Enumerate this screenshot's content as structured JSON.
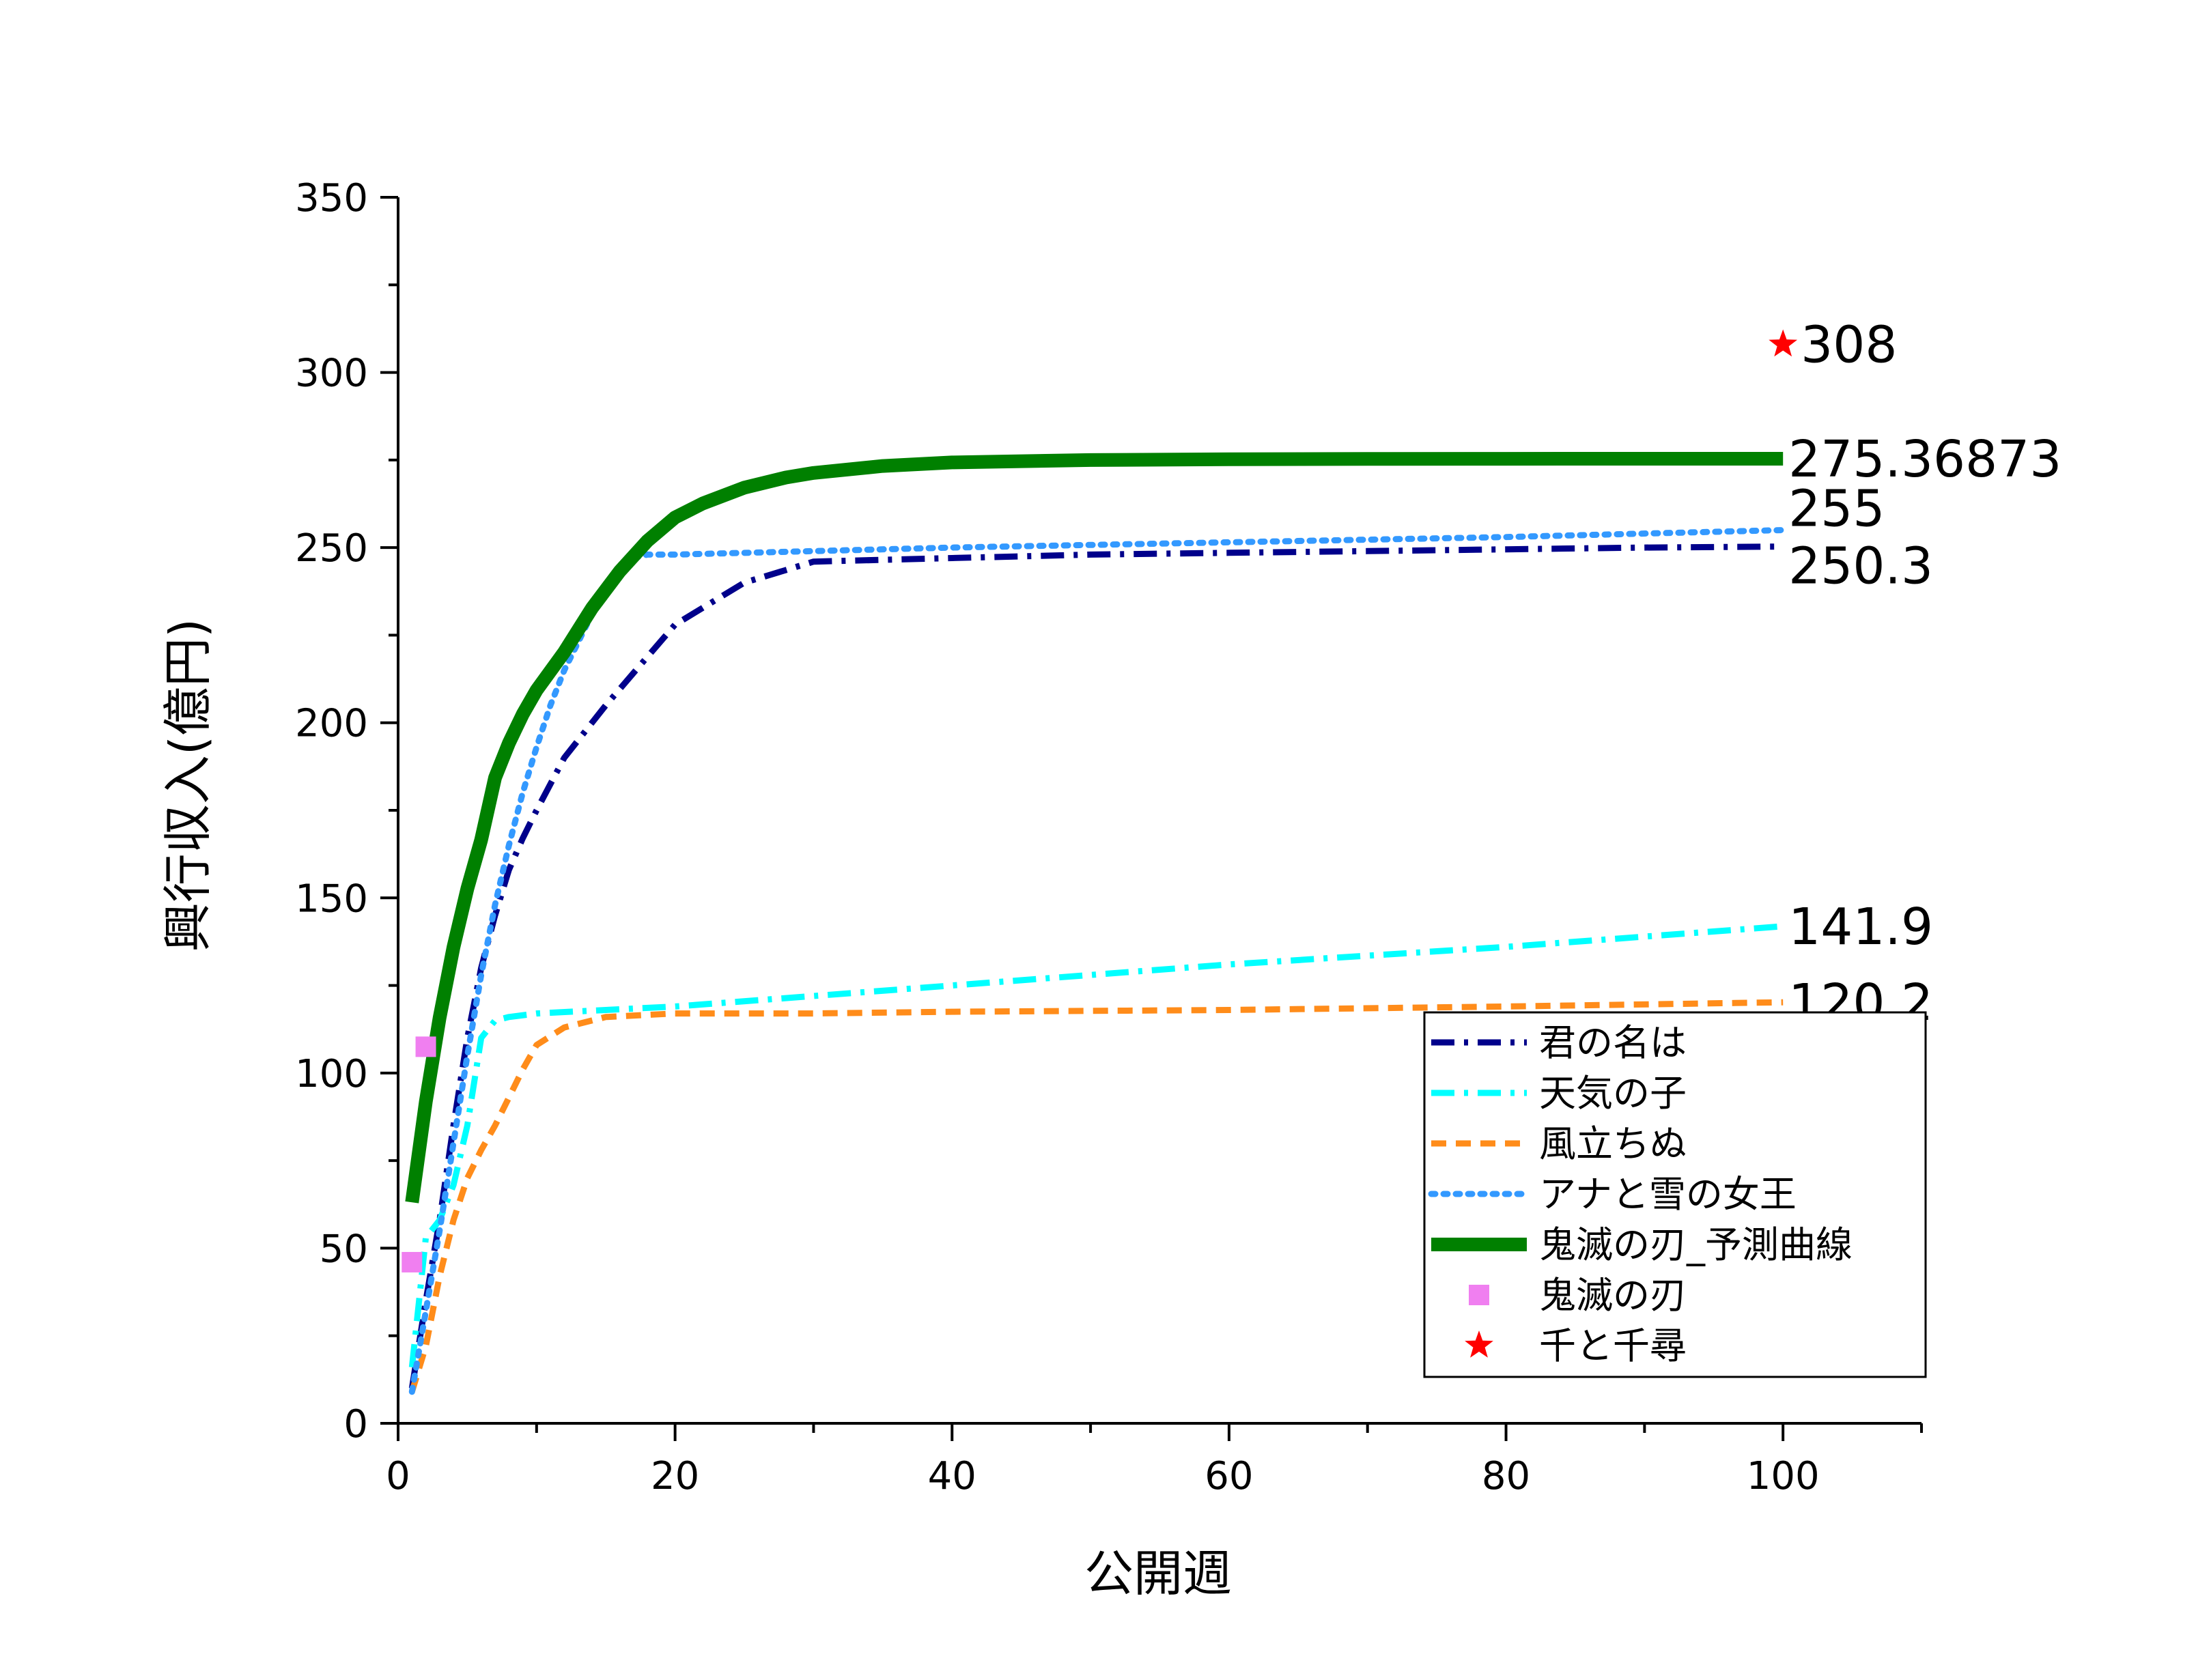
{
  "chart_data": {
    "type": "line",
    "title": "",
    "xlabel": "公開週",
    "ylabel": "興行収入(億円)",
    "xlim": [
      0,
      110
    ],
    "ylim": [
      0,
      350
    ],
    "x_ticks": [
      "0",
      "20",
      "40",
      "60",
      "80",
      "100"
    ],
    "y_ticks": [
      "0",
      "50",
      "100",
      "150",
      "200",
      "250",
      "300",
      "350"
    ],
    "grid": false,
    "legend_position": "bottom-right",
    "series": [
      {
        "name": "君の名は",
        "kind": "line",
        "style": "dashdot",
        "color": "#00008B",
        "x": [
          1,
          2,
          3,
          4,
          5,
          6,
          7,
          8,
          9,
          10,
          12,
          15,
          20,
          25,
          30,
          40,
          50,
          60,
          70,
          80,
          90,
          100
        ],
        "y": [
          10,
          35,
          58,
          85,
          110,
          130,
          145,
          158,
          167,
          175,
          190,
          205,
          228,
          240,
          246,
          247,
          248,
          248.5,
          249,
          249.5,
          250,
          250.3
        ],
        "end_label": "250.3"
      },
      {
        "name": "天気の子",
        "kind": "line",
        "style": "dashdot",
        "color": "#00FFFF",
        "x": [
          1,
          2,
          3,
          4,
          5,
          6,
          7,
          8,
          10,
          15,
          20,
          30,
          40,
          60,
          80,
          100
        ],
        "y": [
          16,
          53,
          58,
          68,
          85,
          110,
          115,
          116,
          117,
          118,
          119,
          122,
          125,
          131,
          136,
          141.9
        ],
        "end_label": "141.9"
      },
      {
        "name": "風立ちぬ",
        "kind": "line",
        "style": "dashed",
        "color": "#FF8C1A",
        "x": [
          1,
          2,
          3,
          4,
          5,
          6,
          7,
          8,
          9,
          10,
          12,
          15,
          20,
          30,
          40,
          60,
          80,
          100
        ],
        "y": [
          9,
          22,
          42,
          58,
          70,
          78,
          85,
          93,
          101,
          108,
          113,
          116,
          117,
          117,
          117.5,
          118,
          119,
          120.2
        ],
        "end_label": "120.2"
      },
      {
        "name": "アナと雪の女王",
        "kind": "line",
        "style": "dotted",
        "color": "#3399FF",
        "x": [
          1,
          2,
          3,
          4,
          5,
          6,
          7,
          8,
          9,
          10,
          11,
          12,
          13,
          14,
          15,
          16,
          17,
          18,
          20,
          30,
          40,
          60,
          80,
          100
        ],
        "y": [
          9,
          32,
          55,
          80,
          105,
          128,
          148,
          165,
          180,
          193,
          205,
          215,
          223,
          231,
          238,
          243,
          247,
          248,
          248,
          249,
          250,
          251.5,
          253,
          255
        ],
        "end_label": "255"
      },
      {
        "name": "鬼滅の刃_予測曲線",
        "kind": "line",
        "style": "solid",
        "color": "#008000",
        "x": [
          1,
          2,
          3,
          4,
          5,
          6,
          7,
          8,
          9,
          10,
          12,
          14,
          16,
          18,
          20,
          22,
          25,
          28,
          30,
          35,
          40,
          50,
          60,
          70,
          80,
          90,
          100
        ],
        "y": [
          63.1,
          91.8,
          115.8,
          135.9,
          152.6,
          166.6,
          184.3,
          194.2,
          202.4,
          209.3,
          220.2,
          232.7,
          243.2,
          251.9,
          258.6,
          262.6,
          267.1,
          270.0,
          271.3,
          273.3,
          274.3,
          275.0,
          275.2,
          275.3,
          275.35,
          275.36,
          275.36873
        ],
        "end_label": "275.36873"
      },
      {
        "name": "鬼滅の刃",
        "kind": "scatter",
        "marker": "square",
        "color": "#F07FF0",
        "x": [
          1,
          2
        ],
        "y": [
          46,
          107.5
        ]
      },
      {
        "name": "千と千尋",
        "kind": "scatter",
        "marker": "star",
        "color": "#FF0000",
        "x": [
          100
        ],
        "y": [
          308
        ],
        "end_label": "308"
      }
    ]
  }
}
